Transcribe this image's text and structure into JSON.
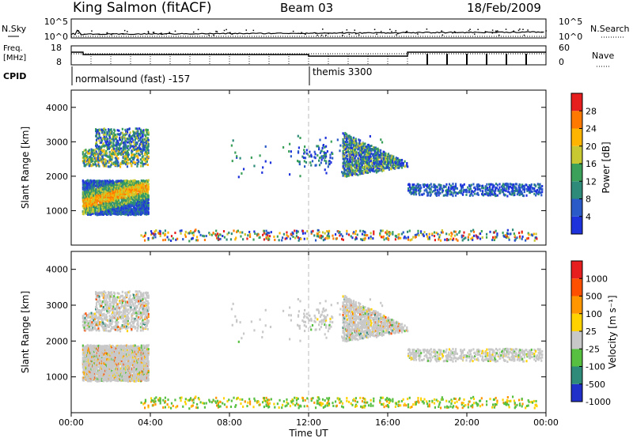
{
  "header": {
    "station": "King Salmon (fitACF)",
    "beam": "Beam 03",
    "date": "18/Feb/2009"
  },
  "top_panels": {
    "nsky_label": "N.Sky",
    "nsearch_label": "N.Search",
    "nsky_ticks": [
      "10^5",
      "10^0"
    ],
    "nsearch_ticks": [
      "10^5",
      "10^0"
    ],
    "freq_label_1": "Freq.",
    "freq_label_2": "[MHz]",
    "freq_ticks": [
      "18",
      "8"
    ],
    "nave_label": "Nave",
    "nave_ticks": [
      "60",
      "0"
    ],
    "cpid_label": "CPID",
    "cpid_1": "normalsound (fast) -157",
    "cpid_2": "themis 3300"
  },
  "colors": {
    "power": [
      "#1e32dc",
      "#2a5ac8",
      "#2e8b7a",
      "#3aa05a",
      "#c8c832",
      "#ffb400",
      "#ff7800",
      "#e61e1e"
    ],
    "velocity": [
      "#2030c8",
      "#2e8b7a",
      "#58c040",
      "#c8c8c8",
      "#ffd200",
      "#ff9600",
      "#ff5000",
      "#e61e1e"
    ],
    "gray": "#c8c8c8"
  },
  "chart_data": [
    {
      "type": "heatmap",
      "panel": "power",
      "ylabel": "Slant Range [km]",
      "ylim": [
        0,
        4500
      ],
      "yticks": [
        "1000",
        "2000",
        "3000",
        "4000"
      ],
      "xlim": [
        0,
        24
      ],
      "colorbar_label": "Power [dB]",
      "colorbar_ticks": [
        "4",
        "8",
        "12",
        "16",
        "20",
        "24",
        "28"
      ],
      "colorbar_range": [
        0,
        30
      ]
    },
    {
      "type": "heatmap",
      "panel": "velocity",
      "ylabel": "Slant Range [km]",
      "ylim": [
        0,
        4500
      ],
      "yticks": [
        "1000",
        "2000",
        "3000",
        "4000"
      ],
      "xlim": [
        0,
        24
      ],
      "colorbar_label": "Velocity [m s⁻¹]",
      "colorbar_ticks": [
        "1000",
        "500",
        "100",
        "25",
        "-25",
        "-100",
        "-500",
        "-1000"
      ]
    }
  ],
  "xaxis": {
    "label": "Time UT",
    "ticks": [
      "00:00",
      "04:00",
      "08:00",
      "12:00",
      "16:00",
      "20:00",
      "00:00"
    ]
  }
}
